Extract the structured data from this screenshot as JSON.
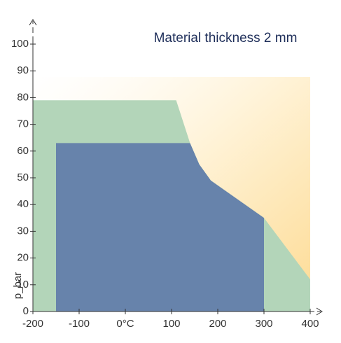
{
  "chart_data": {
    "type": "area",
    "title": "Material thickness  2 mm",
    "y_label": "p_bar",
    "xlim": [
      -200,
      400
    ],
    "ylim": [
      0,
      100
    ],
    "xticks": [
      -200,
      -100,
      {
        "value": 0,
        "label": "0°C"
      },
      100,
      200,
      300,
      400
    ],
    "yticks": [
      0,
      10,
      20,
      30,
      40,
      50,
      60,
      70,
      80,
      90,
      100
    ],
    "series": [
      {
        "color": "#b3d5b9",
        "x": [
          -200,
          -200,
          110,
          140,
          160,
          185,
          300,
          400,
          400
        ],
        "values": [
          0,
          79,
          79,
          63,
          55,
          49,
          35,
          12,
          0
        ]
      },
      {
        "color": "#6783ab",
        "x": [
          -150,
          -150,
          140,
          160,
          185,
          300,
          300
        ],
        "values": [
          0,
          63,
          63,
          55,
          49,
          35,
          0
        ]
      }
    ]
  }
}
